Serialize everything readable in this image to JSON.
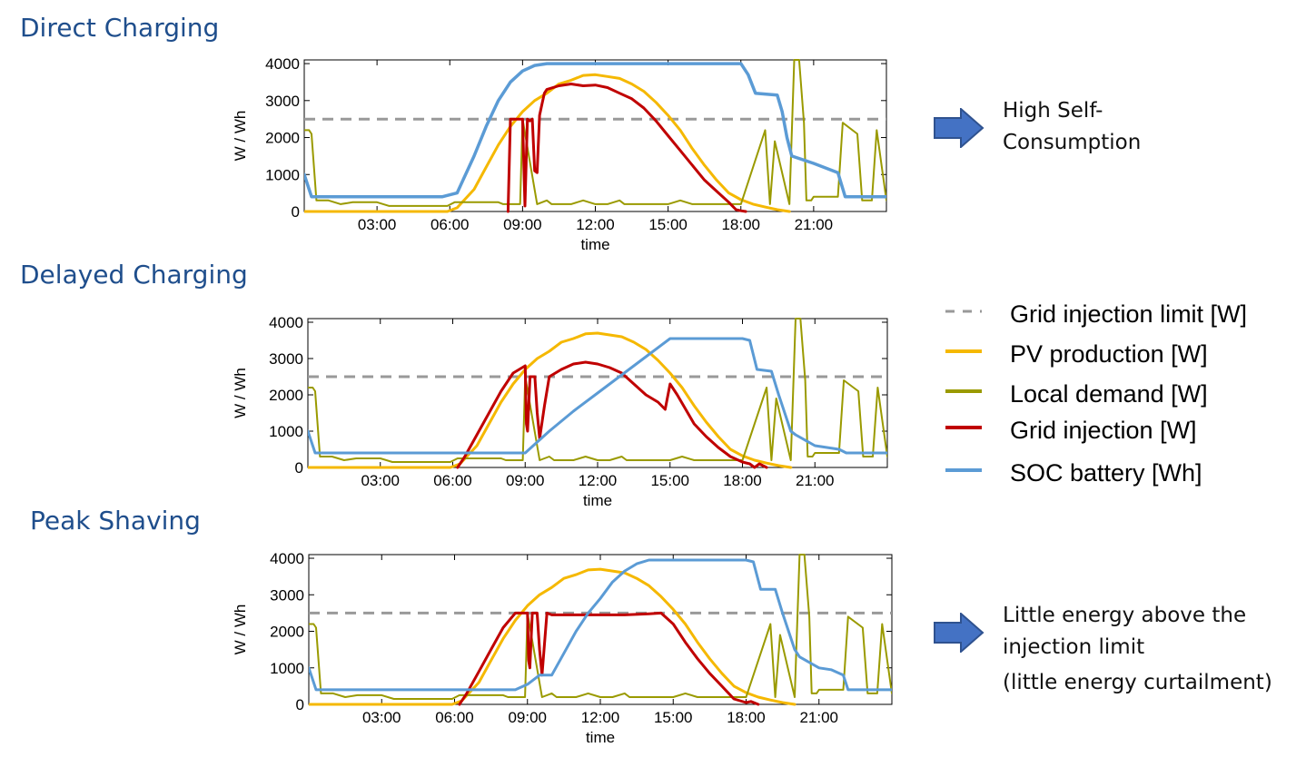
{
  "titles": [
    "Direct Charging",
    "Delayed Charging",
    "Peak Shaving"
  ],
  "legend": [
    {
      "label": "Grid injection limit [W]",
      "color": "#999999",
      "dashed": true
    },
    {
      "label": "PV production [W]",
      "color": "#f5b800",
      "dashed": false
    },
    {
      "label": "Local demand [W]",
      "color": "#9a9a00",
      "dashed": false
    },
    {
      "label": "Grid injection [W]",
      "color": "#c00000",
      "dashed": false
    },
    {
      "label": "SOC battery [Wh]",
      "color": "#5b9bd5",
      "dashed": false
    }
  ],
  "notes": {
    "direct": "High Self-\nConsumption",
    "peak": "Little energy above the\ninjection limit",
    "peak_sub": "(little energy curtailment)"
  },
  "chart_data": [
    {
      "type": "line",
      "title": "Direct Charging",
      "xlabel": "time",
      "ylabel": "W / Wh",
      "xlim": [
        0,
        24
      ],
      "ylim": [
        0,
        4100
      ],
      "xticks": [
        3,
        6,
        9,
        12,
        15,
        18,
        21
      ],
      "xticklabels": [
        "03:00",
        "06:00",
        "09:00",
        "12:00",
        "15:00",
        "18:00",
        "21:00"
      ],
      "yticks": [
        0,
        1000,
        2000,
        3000,
        4000
      ],
      "series": [
        {
          "name": "Grid injection limit [W]",
          "color": "#999999",
          "width": 3,
          "dash": "12,8",
          "x": [
            0,
            24
          ],
          "y": [
            2500,
            2500
          ]
        },
        {
          "name": "PV production [W]",
          "color": "#f5b800",
          "width": 3,
          "x": [
            0,
            5.9,
            6.3,
            7,
            7.5,
            8,
            8.5,
            9,
            9.5,
            10,
            10.5,
            11,
            11.5,
            12,
            12.5,
            13,
            13.5,
            14,
            14.5,
            15,
            15.5,
            16,
            16.5,
            17,
            17.5,
            18,
            18.5,
            19,
            19.5,
            20
          ],
          "y": [
            0,
            0,
            100,
            600,
            1200,
            1800,
            2300,
            2700,
            3000,
            3200,
            3450,
            3550,
            3680,
            3700,
            3650,
            3600,
            3450,
            3250,
            2950,
            2600,
            2200,
            1700,
            1250,
            850,
            500,
            320,
            200,
            120,
            50,
            0
          ]
        },
        {
          "name": "Local demand [W]",
          "color": "#9a9a00",
          "width": 2,
          "x": [
            0,
            0.2,
            0.3,
            0.5,
            1,
            1.5,
            2,
            3,
            3.5,
            4,
            5,
            5.9,
            6.2,
            8,
            8.2,
            8.9,
            9,
            9.6,
            10,
            10.2,
            11,
            11.5,
            12,
            12.5,
            13,
            13.2,
            14,
            15,
            15.5,
            16,
            17,
            18,
            19,
            19.2,
            19.4,
            20,
            20.2,
            20.4,
            20.6,
            20.7,
            20.9,
            21,
            22,
            22.2,
            22.8,
            23,
            23.2,
            23.4,
            23.6,
            24
          ],
          "y": [
            2200,
            2200,
            2100,
            300,
            300,
            200,
            250,
            250,
            150,
            150,
            150,
            150,
            250,
            250,
            200,
            200,
            2500,
            200,
            300,
            200,
            200,
            300,
            200,
            200,
            300,
            200,
            200,
            200,
            300,
            200,
            200,
            200,
            2200,
            200,
            1900,
            200,
            4100,
            4100,
            2400,
            300,
            300,
            400,
            400,
            2400,
            2100,
            300,
            300,
            300,
            2200,
            300
          ]
        },
        {
          "name": "Grid injection [W]",
          "color": "#c00000",
          "width": 3,
          "x": [
            8.4,
            8.5,
            8.7,
            9,
            9.1,
            9.2,
            9.3,
            9.4,
            9.5,
            9.6,
            9.7,
            9.8,
            9.9,
            10,
            10.5,
            11,
            11.5,
            12,
            12.5,
            13,
            13.5,
            14,
            14.5,
            15,
            15.5,
            16,
            16.5,
            17,
            17.5,
            17.8,
            18,
            18.2
          ],
          "y": [
            0,
            2500,
            2500,
            2500,
            150,
            2500,
            2450,
            2500,
            1100,
            1050,
            2600,
            2900,
            3200,
            3300,
            3400,
            3450,
            3400,
            3420,
            3350,
            3200,
            3050,
            2800,
            2450,
            2050,
            1650,
            1250,
            850,
            550,
            250,
            50,
            20,
            0
          ]
        },
        {
          "name": "SOC battery [Wh]",
          "color": "#5b9bd5",
          "width": 3.5,
          "x": [
            0,
            0.3,
            5.7,
            6.3,
            7,
            7.5,
            8,
            8.5,
            9,
            9.5,
            10,
            10.5,
            18,
            18.3,
            18.6,
            19.5,
            19.7,
            19.9,
            20.1,
            21,
            22,
            22.3,
            24
          ],
          "y": [
            1000,
            400,
            400,
            500,
            1500,
            2300,
            3000,
            3500,
            3800,
            3950,
            4000,
            4000,
            4000,
            3700,
            3200,
            3150,
            2700,
            2000,
            1500,
            1300,
            1050,
            400,
            400
          ]
        }
      ]
    },
    {
      "type": "line",
      "title": "Delayed Charging",
      "xlabel": "time",
      "ylabel": "W / Wh",
      "xlim": [
        0,
        24
      ],
      "ylim": [
        0,
        4100
      ],
      "xticks": [
        3,
        6,
        9,
        12,
        15,
        18,
        21
      ],
      "xticklabels": [
        "03:00",
        "06:00",
        "09:00",
        "12:00",
        "15:00",
        "18:00",
        "21:00"
      ],
      "yticks": [
        0,
        1000,
        2000,
        3000,
        4000
      ],
      "series": [
        {
          "name": "Grid injection limit [W]",
          "color": "#999999",
          "width": 3,
          "dash": "12,8",
          "x": [
            0,
            24
          ],
          "y": [
            2500,
            2500
          ]
        },
        {
          "name": "PV production [W]",
          "color": "#f5b800",
          "width": 3,
          "x": [
            0,
            5.9,
            6.3,
            7,
            7.5,
            8,
            8.5,
            9,
            9.5,
            10,
            10.5,
            11,
            11.5,
            12,
            12.5,
            13,
            13.5,
            14,
            14.5,
            15,
            15.5,
            16,
            16.5,
            17,
            17.5,
            18,
            18.5,
            19,
            19.5,
            20
          ],
          "y": [
            0,
            0,
            100,
            600,
            1200,
            1800,
            2300,
            2700,
            3000,
            3200,
            3450,
            3550,
            3680,
            3700,
            3650,
            3600,
            3450,
            3250,
            2950,
            2600,
            2200,
            1700,
            1250,
            850,
            500,
            320,
            200,
            120,
            50,
            0
          ]
        },
        {
          "name": "Local demand [W]",
          "color": "#9a9a00",
          "width": 2,
          "x": [
            0,
            0.2,
            0.3,
            0.5,
            1,
            1.5,
            2,
            3,
            3.5,
            4,
            5,
            5.9,
            6.2,
            8,
            8.2,
            8.9,
            9,
            9.6,
            10,
            10.2,
            11,
            11.5,
            12,
            12.5,
            13,
            13.2,
            14,
            15,
            15.5,
            16,
            17,
            18,
            19,
            19.2,
            19.4,
            20,
            20.2,
            20.4,
            20.6,
            20.7,
            20.9,
            21,
            22,
            22.2,
            22.8,
            23,
            23.2,
            23.4,
            23.6,
            24
          ],
          "y": [
            2200,
            2200,
            2100,
            300,
            300,
            200,
            250,
            250,
            150,
            150,
            150,
            150,
            250,
            250,
            200,
            200,
            2500,
            200,
            300,
            200,
            200,
            300,
            200,
            200,
            300,
            200,
            200,
            200,
            300,
            200,
            200,
            200,
            2200,
            200,
            1900,
            200,
            4100,
            4100,
            2400,
            300,
            300,
            400,
            400,
            2400,
            2100,
            300,
            300,
            300,
            2200,
            300
          ]
        },
        {
          "name": "Grid injection [W]",
          "color": "#c00000",
          "width": 3,
          "x": [
            6.2,
            6.5,
            7,
            7.5,
            8,
            8.5,
            9,
            9.05,
            9.1,
            9.2,
            9.4,
            9.5,
            9.6,
            9.8,
            10,
            10.5,
            11,
            11.5,
            12,
            12.5,
            13,
            13.5,
            14,
            14.5,
            14.8,
            15,
            15.3,
            16,
            16.5,
            17,
            17.5,
            18,
            18.3,
            18.5,
            18.7,
            19
          ],
          "y": [
            0,
            300,
            900,
            1500,
            2100,
            2600,
            2800,
            1200,
            1000,
            2500,
            2500,
            1500,
            800,
            1700,
            2500,
            2700,
            2850,
            2900,
            2850,
            2750,
            2600,
            2300,
            2000,
            1800,
            1600,
            2300,
            2000,
            1200,
            850,
            550,
            300,
            150,
            100,
            0,
            100,
            0
          ]
        },
        {
          "name": "SOC battery [Wh]",
          "color": "#5b9bd5",
          "width": 3,
          "x": [
            0,
            0.3,
            9,
            9.5,
            10,
            11,
            12,
            13,
            14,
            15,
            18,
            18.3,
            18.6,
            19.2,
            19.5,
            20,
            20.2,
            21,
            22,
            22.3,
            24
          ],
          "y": [
            1000,
            400,
            400,
            700,
            1000,
            1550,
            2050,
            2550,
            3050,
            3550,
            3550,
            3500,
            2700,
            2650,
            2000,
            1000,
            900,
            600,
            500,
            400,
            400
          ]
        }
      ]
    },
    {
      "type": "line",
      "title": "Peak Shaving",
      "xlabel": "time",
      "ylabel": "W / Wh",
      "xlim": [
        0,
        24
      ],
      "ylim": [
        0,
        4100
      ],
      "xticks": [
        3,
        6,
        9,
        12,
        15,
        18,
        21
      ],
      "xticklabels": [
        "03:00",
        "06:00",
        "09:00",
        "12:00",
        "15:00",
        "18:00",
        "21:00"
      ],
      "yticks": [
        0,
        1000,
        2000,
        3000,
        4000
      ],
      "series": [
        {
          "name": "Grid injection limit [W]",
          "color": "#999999",
          "width": 3,
          "dash": "12,8",
          "x": [
            0,
            24
          ],
          "y": [
            2500,
            2500
          ]
        },
        {
          "name": "PV production [W]",
          "color": "#f5b800",
          "width": 3,
          "x": [
            0,
            5.9,
            6.3,
            7,
            7.5,
            8,
            8.5,
            9,
            9.5,
            10,
            10.5,
            11,
            11.5,
            12,
            12.5,
            13,
            13.5,
            14,
            14.5,
            15,
            15.5,
            16,
            16.5,
            17,
            17.5,
            18,
            18.5,
            19,
            19.5,
            20
          ],
          "y": [
            0,
            0,
            100,
            600,
            1200,
            1800,
            2300,
            2700,
            3000,
            3200,
            3450,
            3550,
            3680,
            3700,
            3650,
            3600,
            3450,
            3250,
            2950,
            2600,
            2200,
            1700,
            1250,
            850,
            500,
            320,
            200,
            120,
            50,
            0
          ]
        },
        {
          "name": "Local demand [W]",
          "color": "#9a9a00",
          "width": 2,
          "x": [
            0,
            0.2,
            0.3,
            0.5,
            1,
            1.5,
            2,
            3,
            3.5,
            4,
            5,
            5.9,
            6.2,
            8,
            8.2,
            8.9,
            9,
            9.6,
            10,
            10.2,
            11,
            11.5,
            12,
            12.5,
            13,
            13.2,
            14,
            15,
            15.5,
            16,
            17,
            18,
            19,
            19.2,
            19.4,
            20,
            20.2,
            20.4,
            20.6,
            20.7,
            20.9,
            21,
            22,
            22.2,
            22.8,
            23,
            23.2,
            23.4,
            23.6,
            24
          ],
          "y": [
            2200,
            2200,
            2100,
            300,
            300,
            200,
            250,
            250,
            150,
            150,
            150,
            150,
            250,
            250,
            200,
            200,
            2500,
            200,
            300,
            200,
            200,
            300,
            200,
            200,
            300,
            200,
            200,
            200,
            300,
            200,
            200,
            200,
            2200,
            200,
            1900,
            200,
            4100,
            4100,
            2400,
            300,
            300,
            400,
            400,
            2400,
            2100,
            300,
            300,
            300,
            2200,
            300
          ]
        },
        {
          "name": "Grid injection [W]",
          "color": "#c00000",
          "width": 3,
          "x": [
            6.2,
            6.5,
            7,
            7.5,
            8,
            8.5,
            9,
            9.05,
            9.1,
            9.2,
            9.4,
            9.5,
            9.6,
            9.8,
            10,
            11,
            12,
            13,
            14,
            14.5,
            15,
            15.5,
            16,
            16.5,
            17,
            17.5,
            18,
            18.2,
            18.5
          ],
          "y": [
            0,
            300,
            900,
            1500,
            2100,
            2500,
            2500,
            1200,
            1000,
            2500,
            2500,
            1500,
            800,
            2500,
            2450,
            2450,
            2450,
            2450,
            2480,
            2500,
            2200,
            1700,
            1250,
            850,
            500,
            150,
            50,
            80,
            0
          ]
        },
        {
          "name": "SOC battery [Wh]",
          "color": "#5b9bd5",
          "width": 3,
          "x": [
            0,
            0.3,
            8.5,
            9,
            9.5,
            10,
            10.5,
            11,
            11.5,
            12,
            12.5,
            13,
            13.5,
            14,
            14.5,
            15,
            18,
            18.3,
            18.6,
            19.2,
            19.5,
            20,
            20.2,
            21,
            21.5,
            22,
            22.2,
            23.5,
            24
          ],
          "y": [
            1000,
            400,
            400,
            550,
            800,
            800,
            1400,
            2000,
            2500,
            2900,
            3350,
            3650,
            3850,
            3950,
            3950,
            3950,
            3950,
            3900,
            3150,
            3150,
            2500,
            1500,
            1300,
            1000,
            950,
            800,
            400,
            400,
            400
          ]
        }
      ]
    }
  ]
}
